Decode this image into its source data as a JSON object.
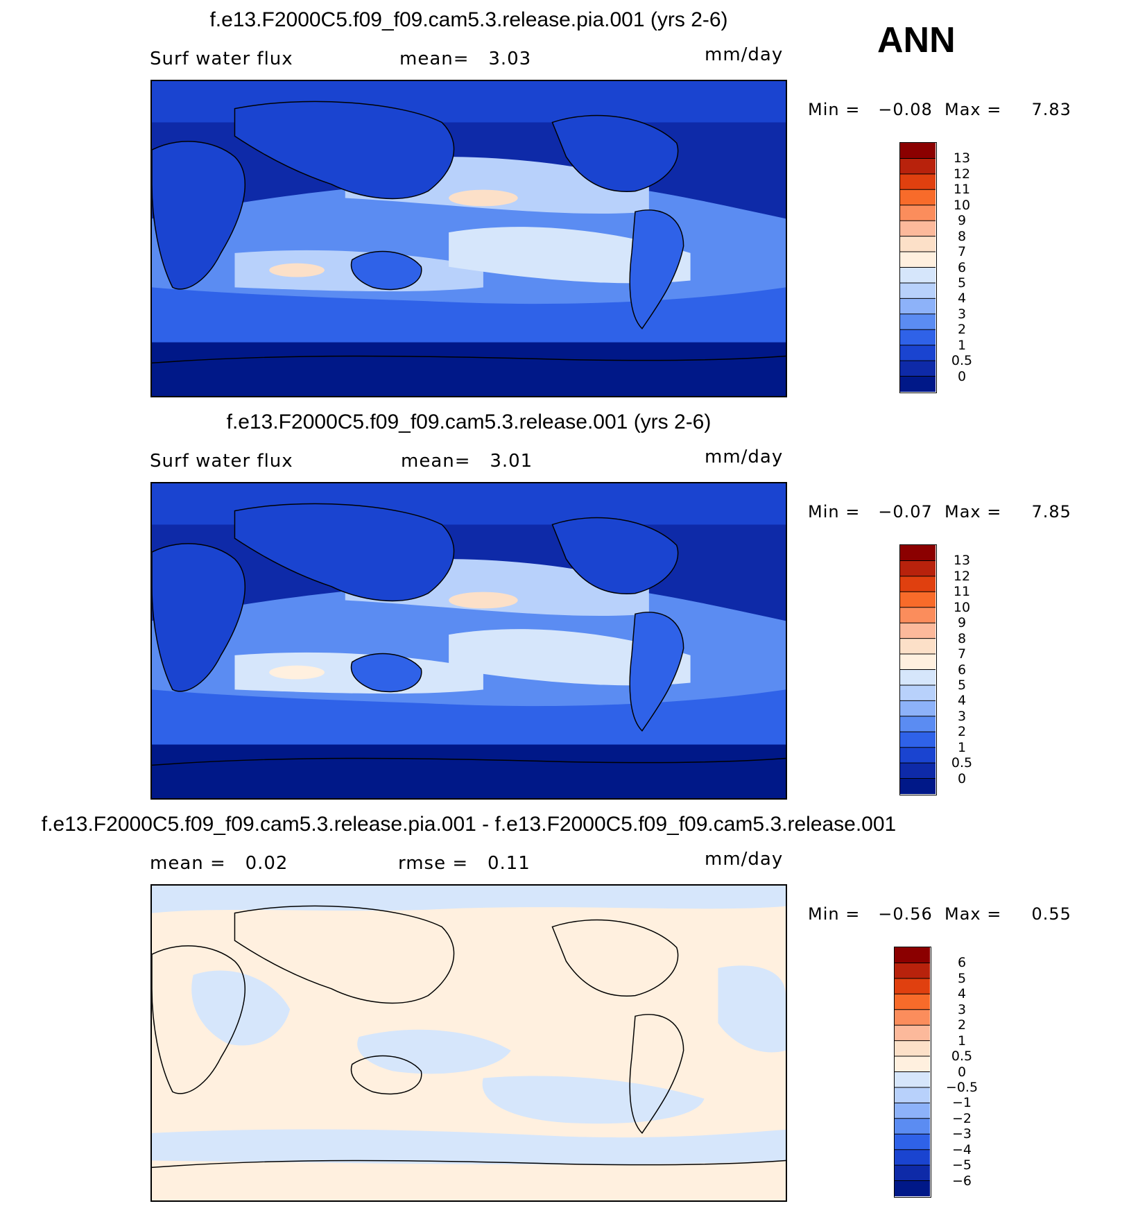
{
  "season": "ANN",
  "panels": [
    {
      "title": "f.e13.F2000C5.f09_f09.cam5.3.release.pia.001 (yrs 2-6)",
      "left_label": "Surf water flux",
      "center_label": "mean=   3.03",
      "units": "mm/day",
      "minmax": "Min =   −0.08  Max =     7.83",
      "colorbar_labels": [
        "13",
        "12",
        "11",
        "10",
        "9",
        "8",
        "7",
        "6",
        "5",
        "4",
        "3",
        "2",
        "1",
        "0.5",
        "0"
      ],
      "palette": [
        "#8b0000",
        "#b8220c",
        "#e0400f",
        "#f86b2a",
        "#fb8d5c",
        "#fcb99b",
        "#fce0c8",
        "#fff0df",
        "#d6e6fb",
        "#b8d1fb",
        "#8db2f9",
        "#5b8cf2",
        "#2f62e8",
        "#1a44d0",
        "#0e2aa8",
        "#001888"
      ]
    },
    {
      "title": "f.e13.F2000C5.f09_f09.cam5.3.release.001 (yrs 2-6)",
      "left_label": "Surf water flux",
      "center_label": "mean=   3.01",
      "units": "mm/day",
      "minmax": "Min =   −0.07  Max =     7.85",
      "colorbar_labels": [
        "13",
        "12",
        "11",
        "10",
        "9",
        "8",
        "7",
        "6",
        "5",
        "4",
        "3",
        "2",
        "1",
        "0.5",
        "0"
      ],
      "palette": [
        "#8b0000",
        "#b8220c",
        "#e0400f",
        "#f86b2a",
        "#fb8d5c",
        "#fcb99b",
        "#fce0c8",
        "#fff0df",
        "#d6e6fb",
        "#b8d1fb",
        "#8db2f9",
        "#5b8cf2",
        "#2f62e8",
        "#1a44d0",
        "#0e2aa8",
        "#001888"
      ]
    },
    {
      "title": "f.e13.F2000C5.f09_f09.cam5.3.release.pia.001 - f.e13.F2000C5.f09_f09.cam5.3.release.001",
      "left_label": "mean =   0.02",
      "center_label": "rmse =   0.11",
      "units": "mm/day",
      "minmax": "Min =   −0.56  Max =     0.55",
      "colorbar_labels": [
        "6",
        "5",
        "4",
        "3",
        "2",
        "1",
        "0.5",
        "0",
        "−0.5",
        "−1",
        "−2",
        "−3",
        "−4",
        "−5",
        "−6"
      ],
      "palette": [
        "#8b0000",
        "#b8220c",
        "#e0400f",
        "#f86b2a",
        "#fb8d5c",
        "#fcb99b",
        "#fce0c8",
        "#fff0df",
        "#d6e6fb",
        "#b8d1fb",
        "#8db2f9",
        "#5b8cf2",
        "#2f62e8",
        "#1a44d0",
        "#0e2aa8",
        "#001888"
      ]
    }
  ]
}
